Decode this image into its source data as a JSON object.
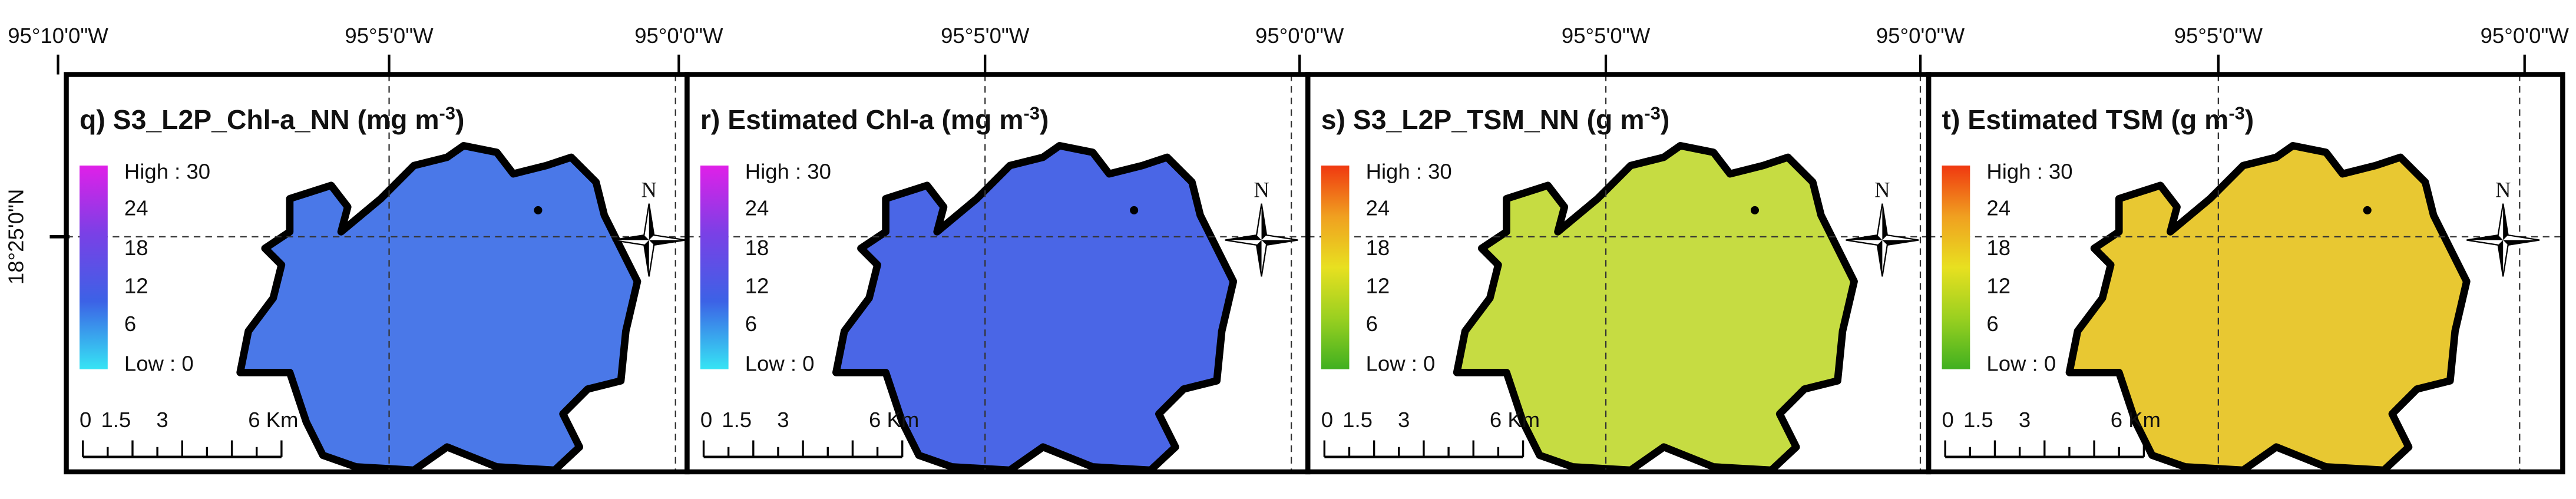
{
  "latitude_label": "18°25'0\"N",
  "panels": [
    {
      "title": "q) S3_L2P_Chl-a_NN (mg m",
      "title_sup": "-3",
      "title_end": ")",
      "lon_labels": [
        "95°10'0\"W",
        "95°5'0\"W",
        "95°0'0\"W"
      ],
      "legend_high": "High : 30",
      "legend_ticks": [
        24,
        18,
        12,
        6
      ],
      "legend_low": "Low : 0",
      "ramp_colors": [
        "#e020e8",
        "#7a40e6",
        "#3c62e6",
        "#36e4f4"
      ],
      "map_color": "#4a78e8",
      "scale_labels": [
        "0",
        "1.5",
        "3",
        "6 Km"
      ],
      "north": "N"
    },
    {
      "title": "r) Estimated Chl-a (mg m",
      "title_sup": "-3",
      "title_end": ")",
      "lon_labels": [
        "95°5'0\"W",
        "95°0'0\"W"
      ],
      "legend_high": "High : 30",
      "legend_ticks": [
        24,
        18,
        12,
        6
      ],
      "legend_low": "Low : 0",
      "ramp_colors": [
        "#e020e8",
        "#7a40e6",
        "#3c62e6",
        "#36e4f4"
      ],
      "map_color": "#4a66e6",
      "scale_labels": [
        "0",
        "1.5",
        "3",
        "6 Km"
      ],
      "north": "N"
    },
    {
      "title": "s) S3_L2P_TSM_NN (g m",
      "title_sup": "-3",
      "title_end": ")",
      "lon_labels": [
        "95°5'0\"W",
        "95°0'0\"W"
      ],
      "legend_high": "High : 30",
      "legend_ticks": [
        24,
        18,
        12,
        6
      ],
      "legend_low": "Low : 0",
      "ramp_colors": [
        "#f03810",
        "#f0a020",
        "#e8e020",
        "#9ad020",
        "#40b020"
      ],
      "map_color": "#c6dc42",
      "scale_labels": [
        "0",
        "1.5",
        "3",
        "6 Km"
      ],
      "north": "N"
    },
    {
      "title": "t) Estimated TSM (g m",
      "title_sup": "-3",
      "title_end": ")",
      "lon_labels": [
        "95°5'0\"W",
        "95°0'0\"W"
      ],
      "legend_high": "High : 30",
      "legend_ticks": [
        24,
        18,
        12,
        6
      ],
      "legend_low": "Low : 0",
      "ramp_colors": [
        "#f03810",
        "#f0a020",
        "#e8e020",
        "#9ad020",
        "#40b020"
      ],
      "map_color": "#e8c832",
      "scale_labels": [
        "0",
        "1.5",
        "3",
        "6 Km"
      ],
      "north": "N"
    }
  ]
}
